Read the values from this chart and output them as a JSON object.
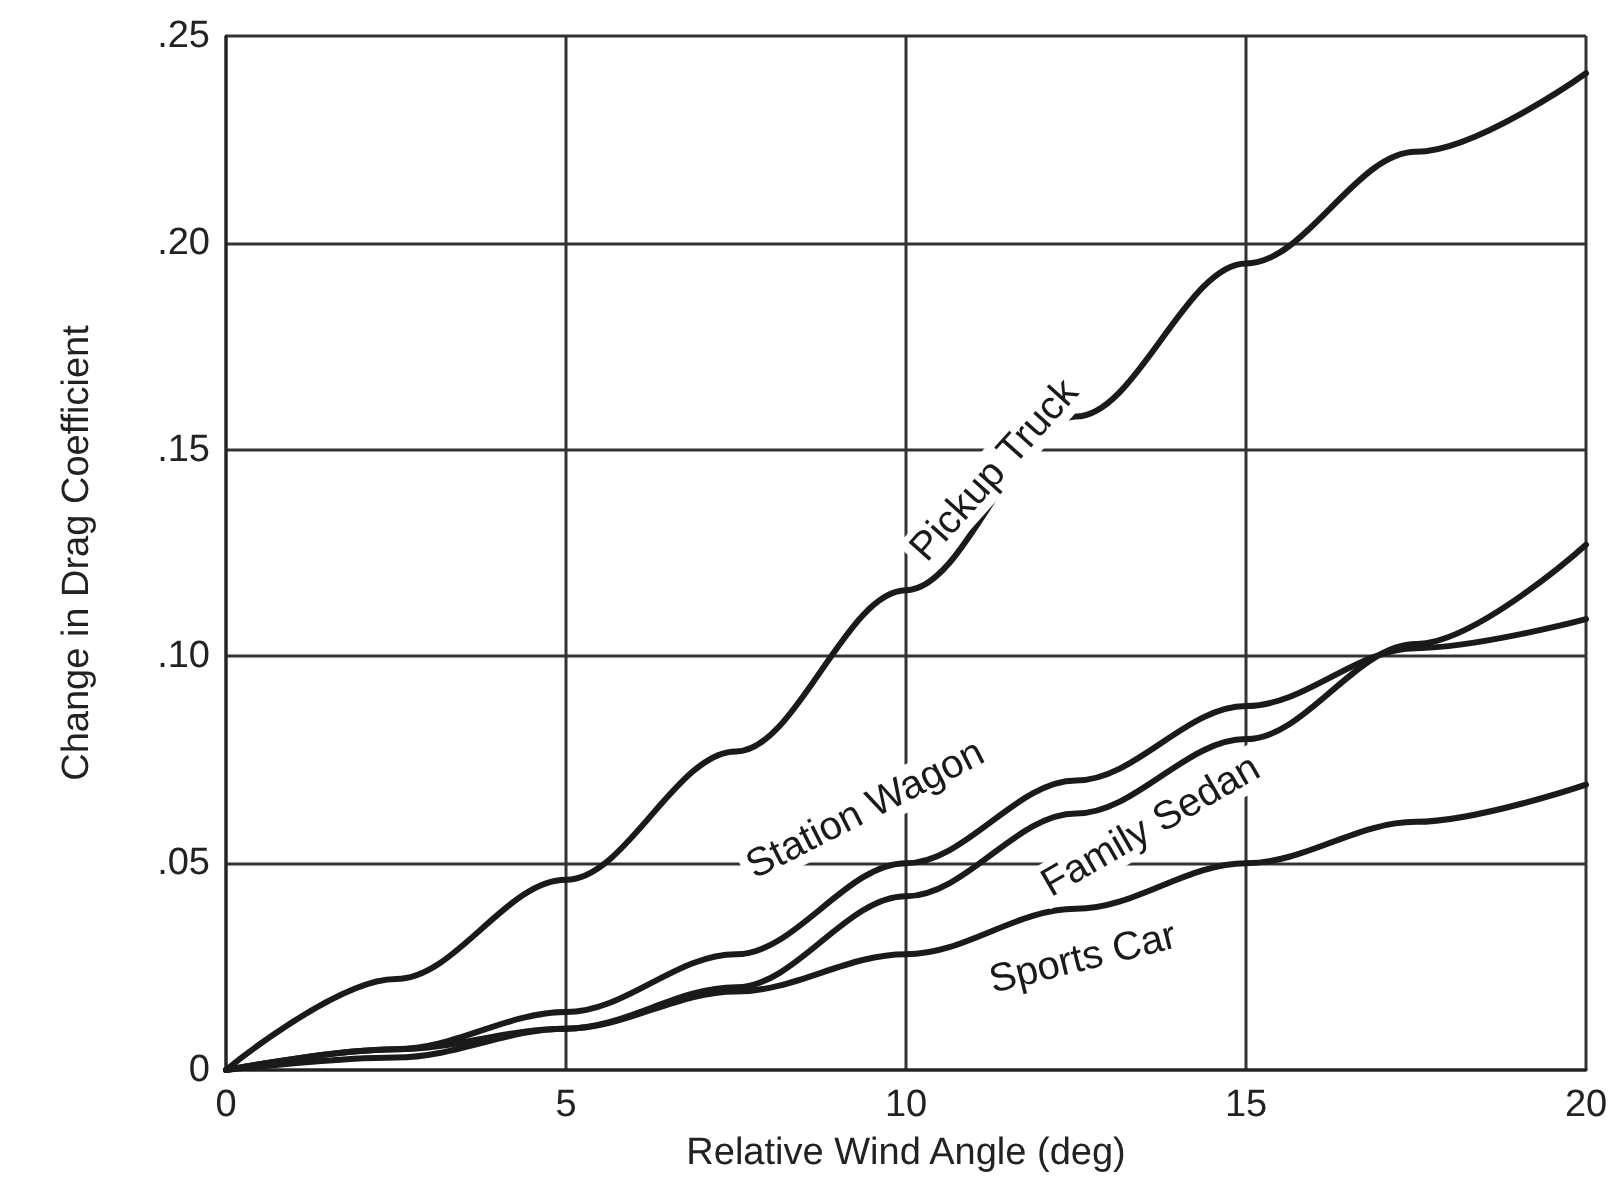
{
  "chart_data": {
    "type": "line",
    "xlabel": "Relative Wind Angle (deg)",
    "ylabel": "Change in Drag Coefficient",
    "x": [
      0,
      2.5,
      5,
      7.5,
      10,
      12.5,
      15,
      17.5,
      20
    ],
    "series": [
      {
        "name": "Pickup Truck",
        "color": "#1a1a1a",
        "values": [
          0,
          0.022,
          0.046,
          0.077,
          0.116,
          0.158,
          0.195,
          0.222,
          0.241
        ]
      },
      {
        "name": "Station Wagon",
        "color": "#1a1a1a",
        "values": [
          0,
          0.005,
          0.014,
          0.028,
          0.05,
          0.07,
          0.088,
          0.102,
          0.109
        ]
      },
      {
        "name": "Family Sedan",
        "color": "#1a1a1a",
        "values": [
          0,
          0.003,
          0.01,
          0.02,
          0.042,
          0.062,
          0.08,
          0.103,
          0.127
        ]
      },
      {
        "name": "Sports Car",
        "color": "#1a1a1a",
        "values": [
          0,
          0.005,
          0.01,
          0.019,
          0.028,
          0.039,
          0.05,
          0.06,
          0.069
        ]
      }
    ],
    "xlim": [
      0,
      20
    ],
    "xticks": [
      0,
      5,
      10,
      15,
      20
    ],
    "ylim": [
      0,
      0.25
    ],
    "yticks": [
      0,
      {
        "value": 0.05,
        "label": ".05"
      },
      {
        "value": 0.1,
        "label": ".10"
      },
      {
        "value": 0.15,
        "label": ".15"
      },
      {
        "value": 0.2,
        "label": ".20"
      },
      {
        "value": 0.25,
        "label": ".25"
      }
    ],
    "grid": true,
    "legend": false,
    "marker": "none",
    "line_style": "solid"
  }
}
